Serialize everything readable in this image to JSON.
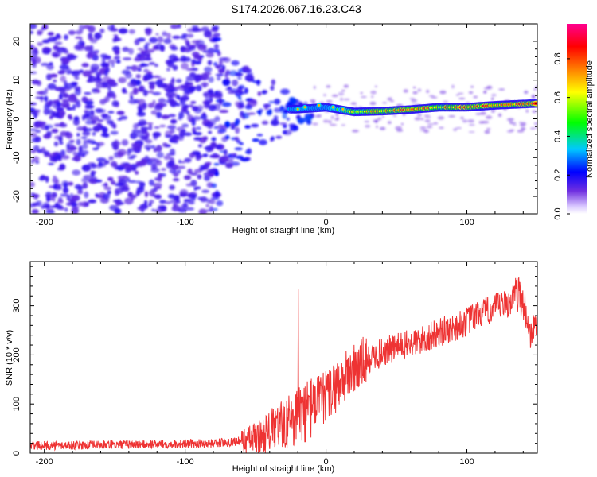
{
  "title": "S174.2026.067.16.23.C43",
  "chart_data": [
    {
      "type": "heatmap",
      "xlabel": "Height of straight line (km)",
      "ylabel": "Frequency (Hz)",
      "xlim": [
        -210,
        150
      ],
      "ylim": [
        -24.5,
        24.5
      ],
      "xticks": [
        -200,
        -100,
        0,
        100
      ],
      "yticks": [
        -20,
        -10,
        0,
        10,
        20
      ],
      "colorbar": {
        "label": "Normalized spectral amplitude",
        "range": [
          0,
          0.98
        ],
        "ticks": [
          0,
          0.2,
          0.4,
          0.6,
          0.8
        ],
        "tick_labels": [
          "0.0",
          "0.2",
          "0.4",
          "0.6",
          "0.8"
        ],
        "colormap": [
          "#ffffff",
          "#7030e0",
          "#0000ff",
          "#00c8ff",
          "#00ff00",
          "#ffff00",
          "#ff8000",
          "#ff0000",
          "#ff00a0"
        ]
      },
      "ridge": {
        "x": [
          -20,
          0,
          20,
          40,
          60,
          80,
          100,
          120,
          150
        ],
        "y": [
          2.5,
          3.0,
          1.8,
          2.0,
          2.4,
          3.0,
          3.0,
          3.5,
          4.0
        ],
        "amplitude": [
          0.3,
          0.4,
          0.65,
          0.7,
          0.85,
          0.7,
          0.85,
          0.75,
          0.85
        ]
      }
    },
    {
      "type": "line",
      "xlabel": "Height of straight line (km)",
      "ylabel": "SNR (10 * v/v)",
      "xlim": [
        -210,
        150
      ],
      "ylim": [
        0,
        390
      ],
      "xticks": [
        -200,
        -100,
        0,
        100
      ],
      "yticks": [
        0,
        100,
        200,
        300
      ],
      "series": [
        {
          "name": "SNR",
          "color": "#ee3333",
          "x": [
            -210,
            -180,
            -150,
            -120,
            -100,
            -80,
            -60,
            -50,
            -40,
            -30,
            -20,
            -10,
            0,
            10,
            20,
            30,
            40,
            50,
            60,
            70,
            80,
            90,
            100,
            110,
            120,
            130,
            135,
            140,
            145,
            150
          ],
          "y": [
            15,
            16,
            17,
            18,
            19,
            20,
            25,
            30,
            45,
            60,
            75,
            95,
            115,
            145,
            170,
            190,
            205,
            215,
            222,
            232,
            245,
            255,
            268,
            285,
            295,
            305,
            330,
            310,
            240,
            270
          ]
        }
      ]
    }
  ]
}
